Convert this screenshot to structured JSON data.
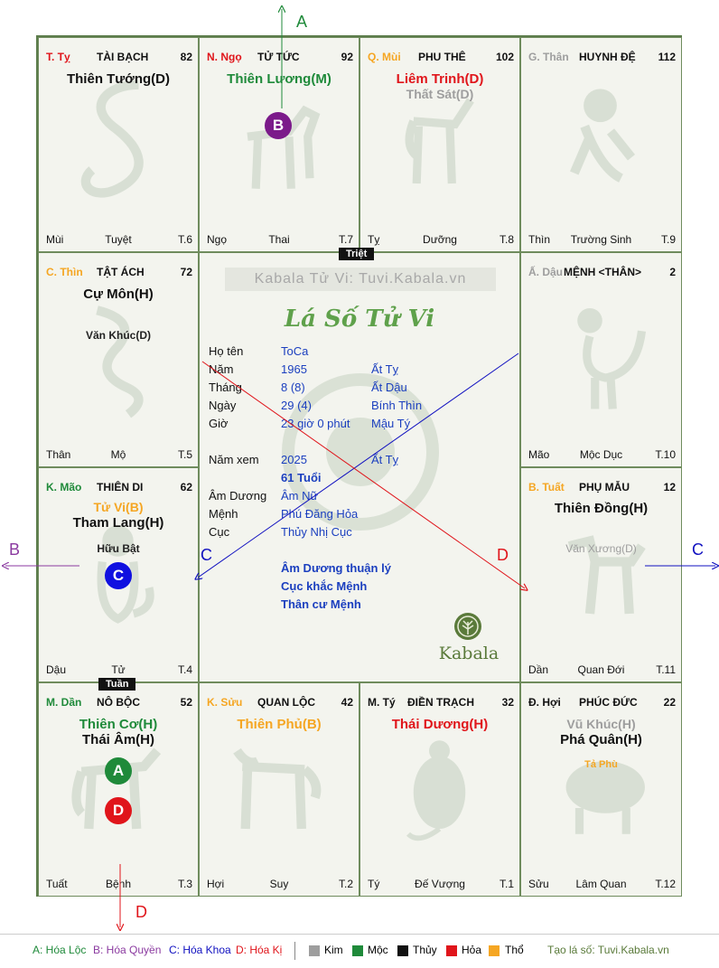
{
  "colors": {
    "kim": "#9e9e9e",
    "moc": "#1f8a3a",
    "thuy": "#111111",
    "hoa": "#e0151b",
    "tho": "#f5a623",
    "label_blue": "#1b3fbf",
    "palace_border": "#6f8c5d"
  },
  "cells": {
    "ty_snake": {
      "can": "T. Tỵ",
      "palace": "TÀI BẠCH",
      "score": "82",
      "stars": [
        "Thiên Tướng(D)"
      ],
      "foot_left": "Mùi",
      "foot_mid": "Tuyệt",
      "foot_right": "T.6"
    },
    "ngo_horse": {
      "can": "N. Ngọ",
      "palace": "TỬ TỨC",
      "score": "92",
      "stars": [
        "Thiên Lương(M)"
      ],
      "foot_left": "Ngọ",
      "foot_mid": "Thai",
      "foot_right": "T.7"
    },
    "mui_goat": {
      "can": "Q. Mùi",
      "palace": "PHU THÊ",
      "score": "102",
      "stars": [
        "Liêm Trinh(D)",
        "Thất Sát(D)"
      ],
      "foot_left": "Tỵ",
      "foot_mid": "Dưỡng",
      "foot_right": "T.8"
    },
    "than_monkey": {
      "can": "G. Thân",
      "palace": "HUYNH ĐỆ",
      "score": "112",
      "stars": [],
      "foot_left": "Thìn",
      "foot_mid": "Trường Sinh",
      "foot_right": "T.9"
    },
    "thin_dragon": {
      "can": "C. Thìn",
      "palace": "TẬT ÁCH",
      "score": "72",
      "stars": [
        "Cự Môn(H)"
      ],
      "minor": "Văn Khúc(D)",
      "foot_left": "Thân",
      "foot_mid": "Mộ",
      "foot_right": "T.5"
    },
    "dau_rooster": {
      "can": "Ấ. Dậu",
      "palace": "MỆNH <THÂN>",
      "score": "2",
      "stars": [],
      "foot_left": "Mão",
      "foot_mid": "Mộc Dục",
      "foot_right": "T.10"
    },
    "mao_cat": {
      "can": "K. Mão",
      "palace": "THIÊN DI",
      "score": "62",
      "stars": [
        "Tử Vi(B)",
        "Tham Lang(H)"
      ],
      "minor": "Hữu Bật",
      "foot_left": "Dậu",
      "foot_mid": "Tử",
      "foot_right": "T.4"
    },
    "tuat_dog": {
      "can": "B. Tuất",
      "palace": "PHỤ MẪU",
      "score": "12",
      "stars": [
        "Thiên Đồng(H)"
      ],
      "minor": "Văn Xương(D)",
      "foot_left": "Dần",
      "foot_mid": "Quan Đới",
      "foot_right": "T.11"
    },
    "dan_tiger": {
      "can": "M. Dần",
      "palace": "NÔ BỘC",
      "score": "52",
      "stars": [
        "Thiên Cơ(H)",
        "Thái Âm(H)"
      ],
      "foot_left": "Tuất",
      "foot_mid": "Bệnh",
      "foot_right": "T.3"
    },
    "suu_ox": {
      "can": "K. Sửu",
      "palace": "QUAN LỘC",
      "score": "42",
      "stars": [
        "Thiên Phủ(B)"
      ],
      "foot_left": "Hợi",
      "foot_mid": "Suy",
      "foot_right": "T.2"
    },
    "ty_rat": {
      "can": "M. Tý",
      "palace": "ĐIỀN TRẠCH",
      "score": "32",
      "stars": [
        "Thái Dương(H)"
      ],
      "foot_left": "Tý",
      "foot_mid": "Đế Vượng",
      "foot_right": "T.1"
    },
    "hoi_pig": {
      "can": "Đ. Hợi",
      "palace": "PHÚC ĐỨC",
      "score": "22",
      "stars": [
        "Vũ Khúc(H)",
        "Phá Quân(H)"
      ],
      "minor": "Tả Phù",
      "foot_left": "Sửu",
      "foot_mid": "Lâm Quan",
      "foot_right": "T.12"
    }
  },
  "tags": {
    "triet": "Triệt",
    "tuan": "Tuần"
  },
  "center": {
    "watermark": "Kabala Tử Vi: Tuvi.Kabala.vn",
    "title": "Lá Số Tử Vi",
    "ho_ten_label": "Họ tên",
    "ho_ten": "ToCa",
    "nam_label": "Năm",
    "nam": "1965",
    "nam_can_chi": "Ất Tỵ",
    "thang_label": "Tháng",
    "thang": "8  (8)",
    "thang_can_chi": "Ất Dậu",
    "ngay_label": "Ngày",
    "ngay": "29  (4)",
    "ngay_can_chi": "Bính Thìn",
    "gio_label": "Giờ",
    "gio": "23 giờ 0 phút",
    "gio_can_chi": "Mậu Tý",
    "nam_xem_label": "Năm xem",
    "nam_xem": "2025",
    "nam_xem_can_chi": "Ất Tỵ",
    "tuoi": "61 Tuổi",
    "am_duong_label": "Âm Dương",
    "am_duong": "Âm Nữ",
    "menh_label": "Mệnh",
    "menh": "Phú Đăng Hỏa",
    "cuc_label": "Cục",
    "cuc": "Thủy Nhị Cục",
    "note1": "Âm Dương thuận lý",
    "note2": "Cục khắc Mệnh",
    "note3": "Thân cư Mệnh",
    "brand": "Kabala"
  },
  "markers": {
    "A": "A",
    "B": "B",
    "C": "C",
    "D": "D"
  },
  "legend": {
    "a": "A: Hóa Lộc",
    "b": "B: Hóa Quyền",
    "c": "C: Hóa Khoa",
    "d": "D: Hóa Kị",
    "kim": "Kim",
    "moc": "Mộc",
    "thuy": "Thủy",
    "hoa": "Hỏa",
    "tho": "Thổ",
    "site": "Tạo lá số: Tuvi.Kabala.vn"
  }
}
